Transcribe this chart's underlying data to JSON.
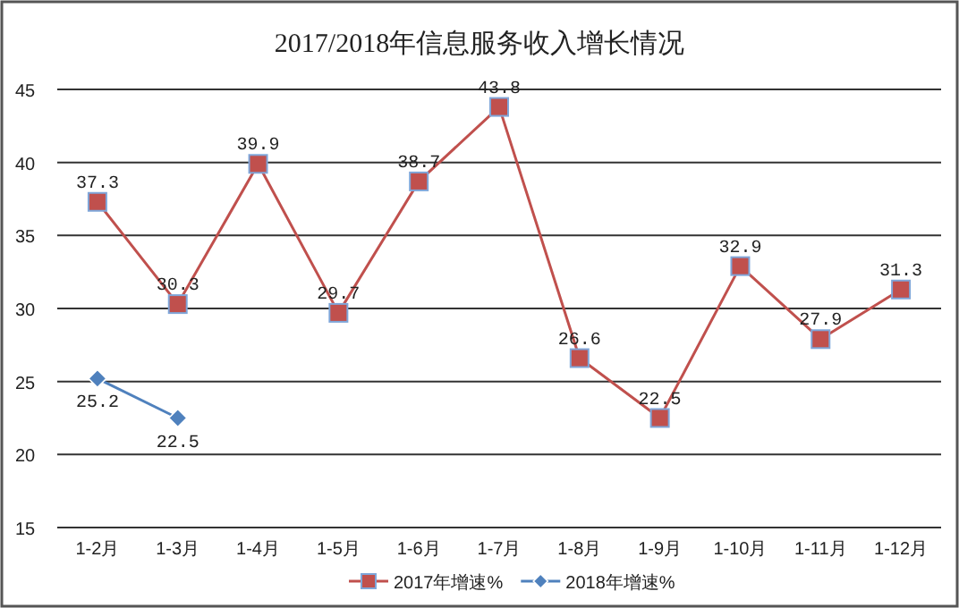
{
  "chart_data": {
    "type": "line",
    "title": "2017/2018年信息服务收入增长情况",
    "categories": [
      "1-2月",
      "1-3月",
      "1-4月",
      "1-5月",
      "1-6月",
      "1-7月",
      "1-8月",
      "1-9月",
      "1-10月",
      "1-11月",
      "1-12月"
    ],
    "series": [
      {
        "name": "2017年增速%",
        "color": "#c0504d",
        "marker": "square",
        "values": [
          37.3,
          30.3,
          39.9,
          29.7,
          38.7,
          43.8,
          26.6,
          22.5,
          32.9,
          27.9,
          31.3
        ]
      },
      {
        "name": "2018年增速%",
        "color": "#4f81bd",
        "marker": "diamond",
        "values": [
          25.2,
          22.5,
          null,
          null,
          null,
          null,
          null,
          null,
          null,
          null,
          null
        ]
      }
    ],
    "ylim": [
      15,
      45
    ],
    "yticks": [
      15,
      20,
      25,
      30,
      35,
      40,
      45
    ],
    "grid": "y",
    "legend": "bottom",
    "data_labels": true,
    "line_style": "solid"
  }
}
